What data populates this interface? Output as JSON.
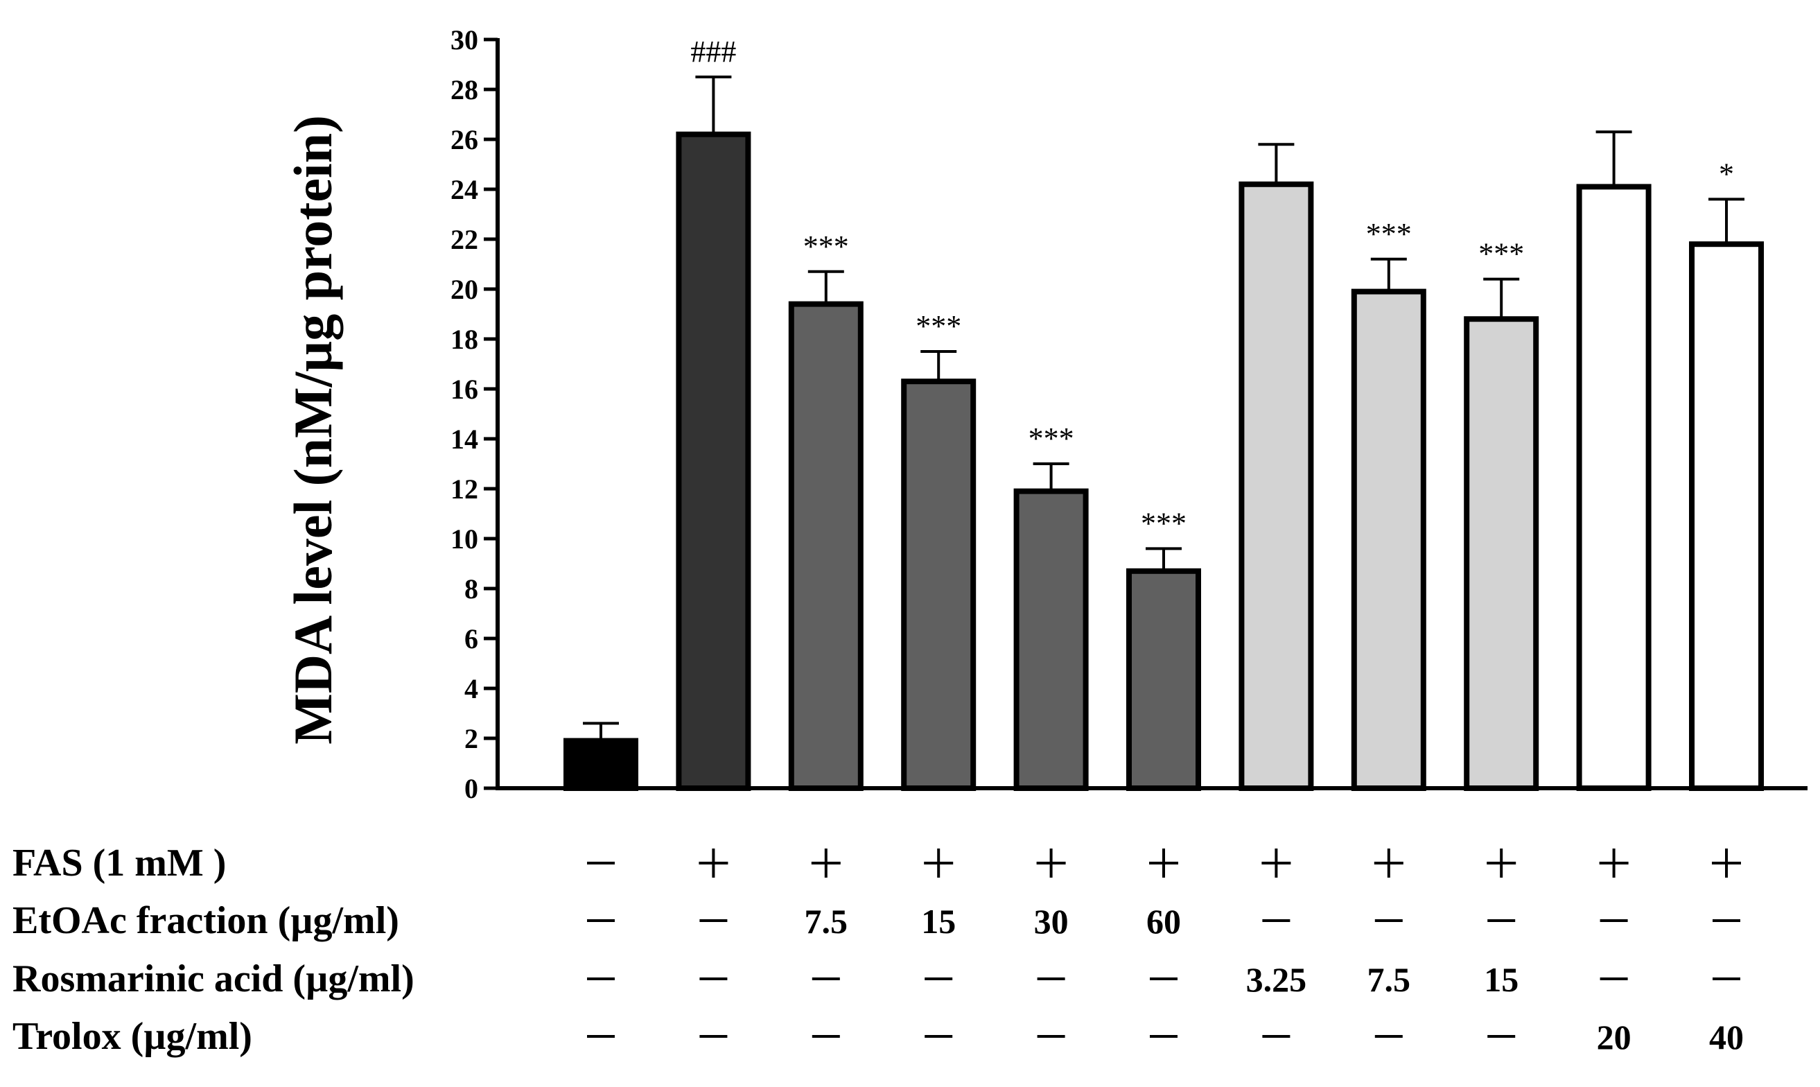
{
  "chart_data": {
    "type": "bar",
    "ylabel": "MDA level (nM/µg protein)",
    "ylim": [
      0,
      30
    ],
    "yticks": [
      0,
      2,
      4,
      6,
      8,
      10,
      12,
      14,
      16,
      18,
      20,
      22,
      24,
      26,
      28,
      30
    ],
    "bars": [
      {
        "value": 1.9,
        "error": 0.7,
        "fill": "#000000",
        "sig": ""
      },
      {
        "value": 26.2,
        "error": 2.3,
        "fill": "#333333",
        "sig": "###"
      },
      {
        "value": 19.4,
        "error": 1.3,
        "fill": "#606060",
        "sig": "***"
      },
      {
        "value": 16.3,
        "error": 1.2,
        "fill": "#606060",
        "sig": "***"
      },
      {
        "value": 11.9,
        "error": 1.1,
        "fill": "#606060",
        "sig": "***"
      },
      {
        "value": 8.7,
        "error": 0.9,
        "fill": "#606060",
        "sig": "***"
      },
      {
        "value": 24.2,
        "error": 1.6,
        "fill": "#d3d3d3",
        "sig": ""
      },
      {
        "value": 19.9,
        "error": 1.3,
        "fill": "#d3d3d3",
        "sig": "***"
      },
      {
        "value": 18.8,
        "error": 1.6,
        "fill": "#d3d3d3",
        "sig": "***"
      },
      {
        "value": 24.1,
        "error": 2.2,
        "fill": "#ffffff",
        "sig": ""
      },
      {
        "value": 21.8,
        "error": 1.8,
        "fill": "#ffffff",
        "sig": "*"
      }
    ],
    "treatment_table": [
      {
        "label": "FAS (1 mM )",
        "values": [
          "–",
          "+",
          "+",
          "+",
          "+",
          "+",
          "+",
          "+",
          "+",
          "+",
          "+"
        ]
      },
      {
        "label": "EtOAc fraction (µg/ml)",
        "values": [
          "–",
          "–",
          "7.5",
          "15",
          "30",
          "60",
          "–",
          "–",
          "–",
          "–",
          "–"
        ]
      },
      {
        "label": "Rosmarinic acid (µg/ml)",
        "values": [
          "–",
          "–",
          "–",
          "–",
          "–",
          "–",
          "3.25",
          "7.5",
          "15",
          "–",
          "–"
        ]
      },
      {
        "label": "Trolox (µg/ml)",
        "values": [
          "–",
          "–",
          "–",
          "–",
          "–",
          "–",
          "–",
          "–",
          "–",
          "20",
          "40"
        ]
      }
    ]
  }
}
